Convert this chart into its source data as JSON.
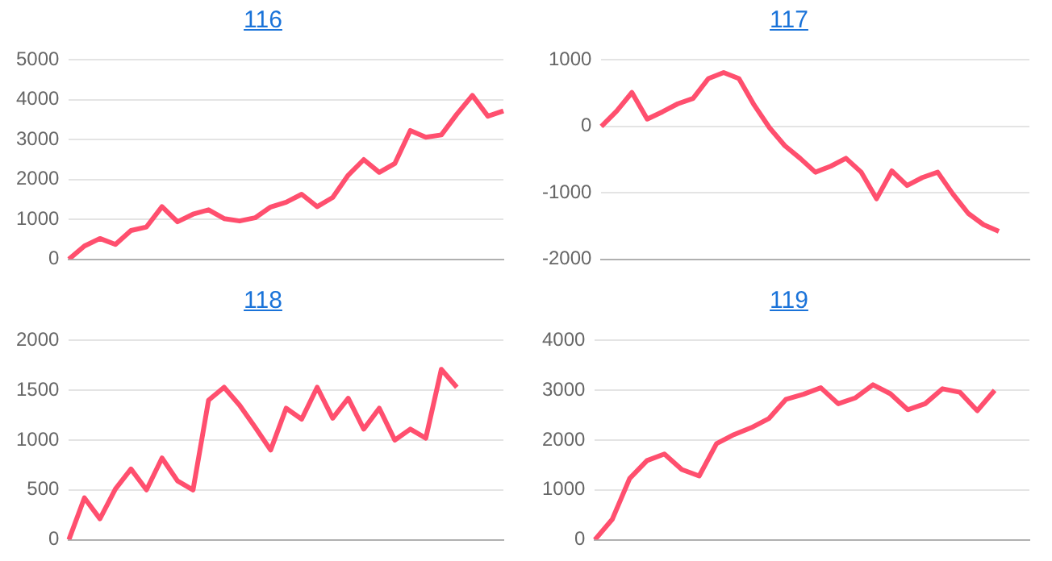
{
  "chart_data": [
    {
      "type": "line",
      "title": "116",
      "categories": [
        null,
        null,
        null,
        null,
        null,
        null,
        null,
        null,
        null,
        null,
        null,
        null,
        null,
        null,
        null,
        null,
        null,
        null,
        null,
        null,
        null,
        null,
        null,
        null,
        null,
        null,
        null,
        null,
        null
      ],
      "series": [
        {
          "color": "#ff4f6e",
          "values": [
            0,
            330,
            520,
            370,
            720,
            810,
            1320,
            940,
            1130,
            1240,
            1020,
            960,
            1040,
            1310,
            1430,
            1630,
            1320,
            1550,
            2110,
            2500,
            2180,
            2400,
            3230,
            3060,
            3120,
            3640,
            4110,
            3590,
            3720
          ]
        }
      ],
      "ylim": [
        0,
        5000
      ],
      "yticks": [
        0,
        1000,
        2000,
        3000,
        4000,
        5000
      ],
      "grid": "y",
      "legend": false,
      "tick_labels": "y",
      "marker": "none"
    },
    {
      "type": "line",
      "title": "117",
      "categories": [
        null,
        null,
        null,
        null,
        null,
        null,
        null,
        null,
        null,
        null,
        null,
        null,
        null,
        null,
        null,
        null,
        null,
        null,
        null,
        null,
        null,
        null,
        null,
        null,
        null,
        null,
        null,
        null,
        null
      ],
      "series": [
        {
          "color": "#ff4f6e",
          "values": [
            0,
            230,
            510,
            110,
            220,
            340,
            420,
            720,
            810,
            720,
            320,
            -20,
            -290,
            -480,
            -690,
            -600,
            -480,
            -690,
            -1090,
            -670,
            -890,
            -770,
            -690,
            -1020,
            -1310,
            -1480,
            -1580,
            null,
            null
          ]
        }
      ],
      "ylim": [
        -2000,
        1000
      ],
      "yticks": [
        -2000,
        -1000,
        0,
        1000
      ],
      "grid": "y",
      "legend": false,
      "tick_labels": "y",
      "marker": "none"
    },
    {
      "type": "line",
      "title": "118",
      "categories": [
        null,
        null,
        null,
        null,
        null,
        null,
        null,
        null,
        null,
        null,
        null,
        null,
        null,
        null,
        null,
        null,
        null,
        null,
        null,
        null,
        null,
        null,
        null,
        null,
        null,
        null,
        null,
        null,
        null
      ],
      "series": [
        {
          "color": "#ff4f6e",
          "values": [
            0,
            420,
            210,
            510,
            710,
            500,
            820,
            590,
            500,
            1400,
            1530,
            1350,
            1130,
            900,
            1320,
            1210,
            1530,
            1220,
            1420,
            1110,
            1320,
            1000,
            1110,
            1020,
            1710,
            1530,
            null,
            null,
            null
          ]
        }
      ],
      "ylim": [
        0,
        2000
      ],
      "yticks": [
        0,
        500,
        1000,
        1500,
        2000
      ],
      "grid": "y",
      "legend": false,
      "tick_labels": "y",
      "marker": "none"
    },
    {
      "type": "line",
      "title": "119",
      "categories": [
        null,
        null,
        null,
        null,
        null,
        null,
        null,
        null,
        null,
        null,
        null,
        null,
        null,
        null,
        null,
        null,
        null,
        null,
        null,
        null,
        null,
        null,
        null,
        null,
        null,
        null
      ],
      "series": [
        {
          "color": "#ff4f6e",
          "values": [
            0,
            410,
            1230,
            1590,
            1720,
            1410,
            1280,
            1930,
            2110,
            2250,
            2430,
            2820,
            2920,
            3050,
            2730,
            2850,
            3110,
            2930,
            2610,
            2730,
            3030,
            2960,
            2590,
            3000,
            null,
            null
          ]
        }
      ],
      "ylim": [
        0,
        4000
      ],
      "yticks": [
        0,
        1000,
        2000,
        3000,
        4000
      ],
      "grid": "y",
      "legend": false,
      "tick_labels": "y",
      "marker": "none"
    }
  ]
}
